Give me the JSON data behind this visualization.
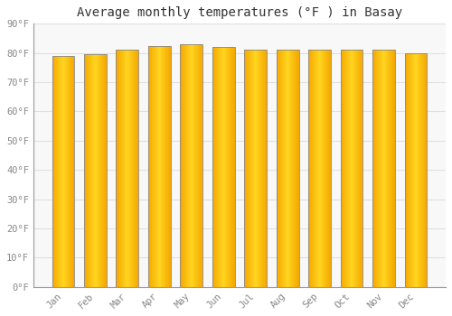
{
  "title": "Average monthly temperatures (°F ) in Basay",
  "months": [
    "Jan",
    "Feb",
    "Mar",
    "Apr",
    "May",
    "Jun",
    "Jul",
    "Aug",
    "Sep",
    "Oct",
    "Nov",
    "Dec"
  ],
  "values": [
    79,
    79.5,
    81,
    82.5,
    83,
    82,
    81,
    81,
    81,
    81,
    81,
    80
  ],
  "bar_color_left": "#F5A800",
  "bar_color_center": "#FFD040",
  "bar_color_right": "#F0A000",
  "bar_edge_color": "#888888",
  "background_color": "#ffffff",
  "plot_bg_color": "#f8f8f8",
  "grid_color": "#e0e0e0",
  "ylim": [
    0,
    90
  ],
  "yticks": [
    0,
    10,
    20,
    30,
    40,
    50,
    60,
    70,
    80,
    90
  ],
  "title_fontsize": 10,
  "tick_fontsize": 7.5,
  "tick_color": "#888888"
}
